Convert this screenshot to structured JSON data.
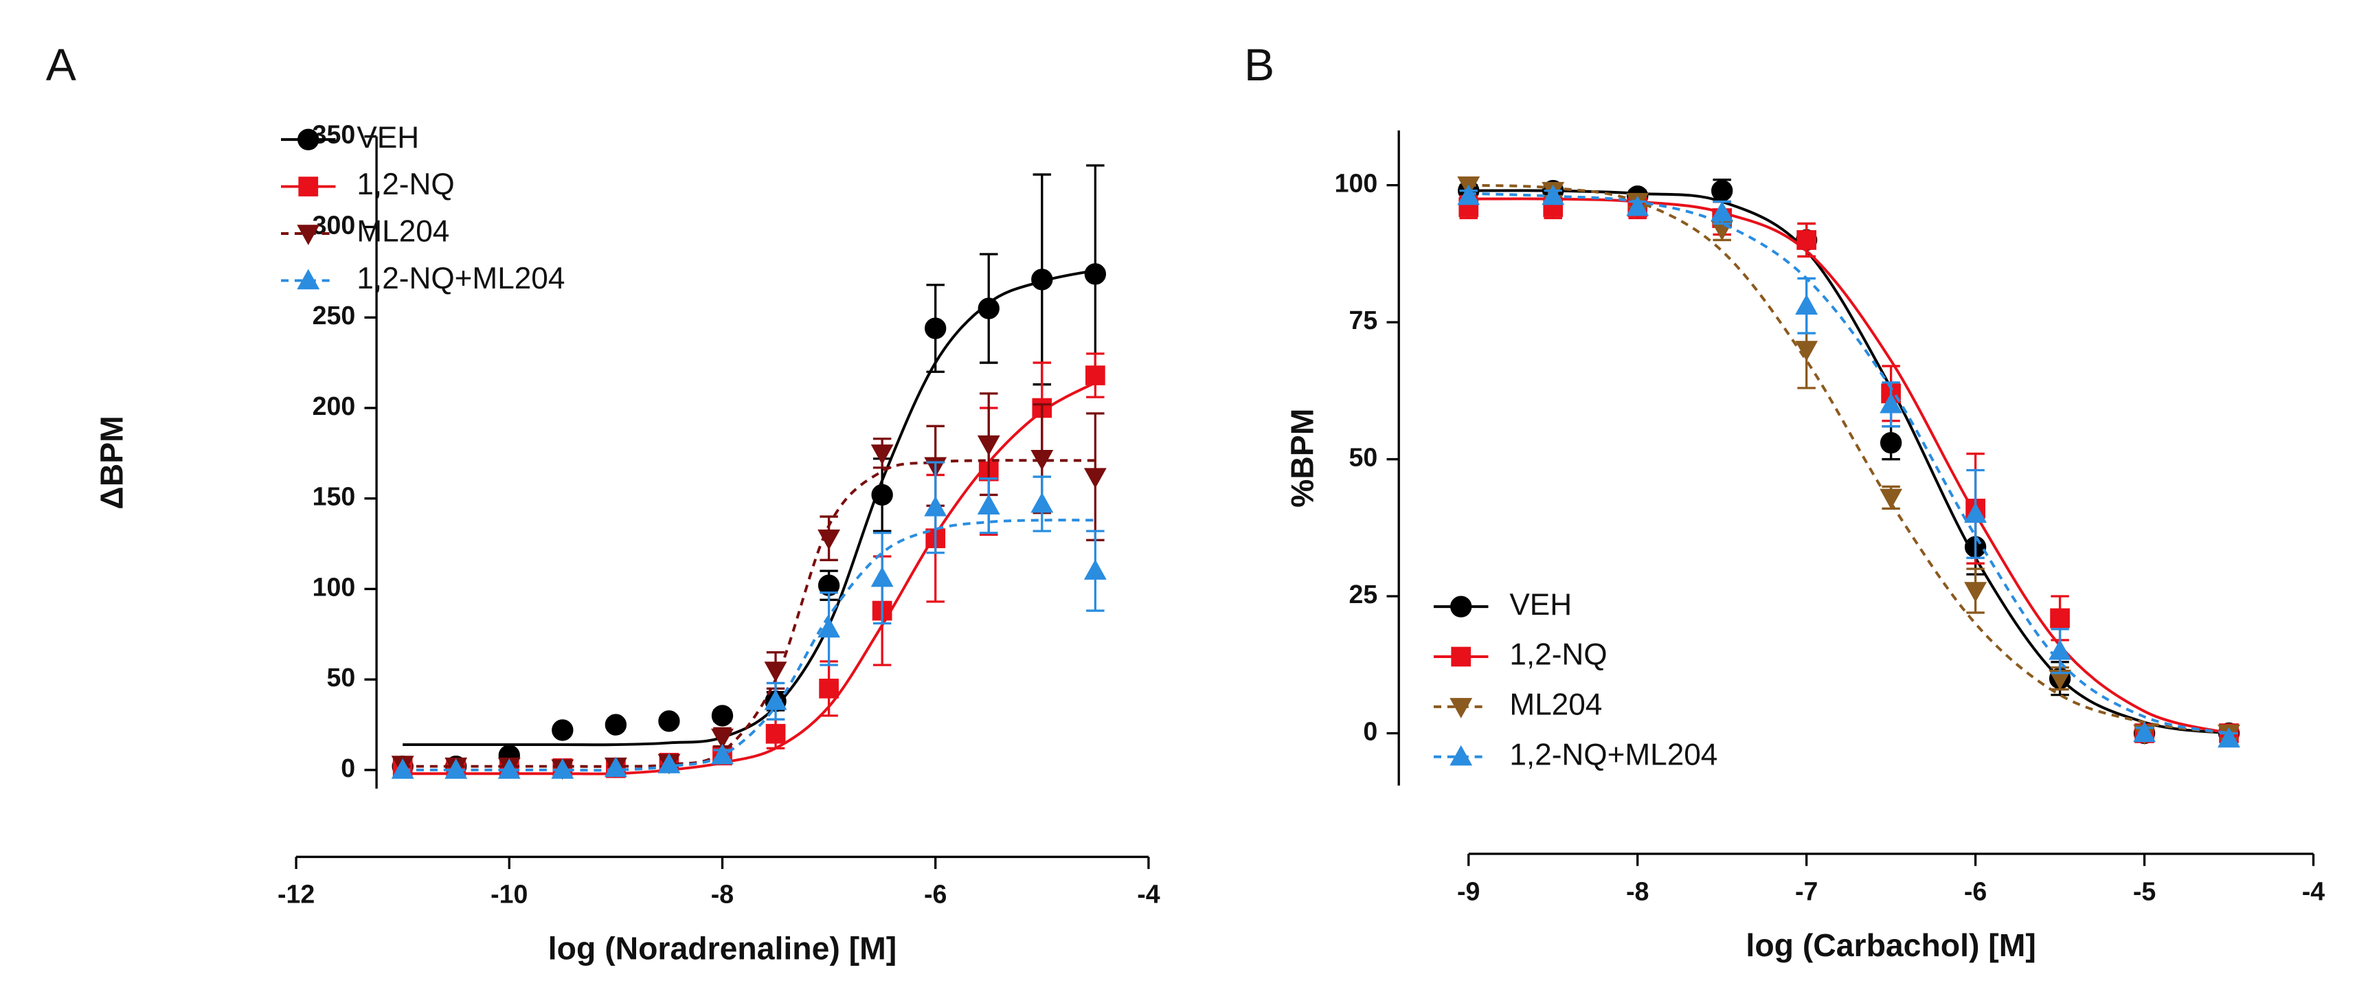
{
  "chart_data": [
    {
      "type": "line",
      "panel_label": "A",
      "x_label": "log (Noradrenaline) [M]",
      "y_label": "ΔBPM",
      "xlim": [
        -12,
        -4
      ],
      "xticks": [
        -12,
        -10,
        -8,
        -6,
        -4
      ],
      "ylim": [
        -48,
        350
      ],
      "yticks": [
        0,
        50,
        100,
        150,
        200,
        250,
        300,
        350
      ],
      "legend": "upper left",
      "x": [
        -11,
        -10.5,
        -10,
        -9.5,
        -9,
        -8.5,
        -8,
        -7.5,
        -7,
        -6.5,
        -6,
        -5.5,
        -5,
        -4.5
      ],
      "series": [
        {
          "name": "VEH",
          "color": "#000000",
          "marker": "circle",
          "dash": false,
          "values": [
            2,
            2,
            8,
            22,
            25,
            27,
            30,
            38,
            102,
            152,
            244,
            255,
            271,
            274
          ],
          "errors": [
            0,
            0,
            2,
            0,
            0,
            0,
            3,
            5,
            8,
            20,
            24,
            30,
            58,
            60
          ],
          "fit": [
            14,
            14,
            14,
            14,
            14,
            15,
            18,
            35,
            80,
            160,
            225,
            258,
            270,
            276
          ]
        },
        {
          "name": "1,2-NQ",
          "color": "#e8101a",
          "marker": "square",
          "dash": false,
          "values": [
            1,
            1,
            1,
            1,
            1,
            4,
            8,
            20,
            45,
            88,
            128,
            165,
            200,
            218
          ],
          "errors": [
            0,
            0,
            0,
            0,
            0,
            2,
            4,
            8,
            15,
            30,
            35,
            35,
            25,
            12
          ],
          "fit": [
            -2,
            -2,
            -2,
            -2,
            -2,
            0,
            4,
            12,
            35,
            80,
            130,
            170,
            198,
            214
          ]
        },
        {
          "name": "ML204",
          "color": "#7a0d0d",
          "marker": "triangle-down",
          "dash": true,
          "values": [
            3,
            2,
            2,
            1,
            2,
            4,
            18,
            55,
            128,
            175,
            168,
            180,
            172,
            162
          ],
          "errors": [
            0,
            0,
            0,
            0,
            0,
            2,
            5,
            10,
            12,
            8,
            22,
            28,
            30,
            35
          ],
          "fit": [
            2,
            2,
            2,
            2,
            2,
            3,
            10,
            50,
            135,
            165,
            170,
            171,
            171,
            171
          ]
        },
        {
          "name": "1,2-NQ+ML204",
          "color": "#2a8de0",
          "marker": "triangle-up",
          "dash": true,
          "values": [
            0,
            0,
            0,
            0,
            1,
            3,
            8,
            38,
            78,
            106,
            145,
            146,
            147,
            110
          ],
          "errors": [
            0,
            0,
            0,
            0,
            0,
            0,
            3,
            10,
            20,
            25,
            25,
            15,
            15,
            22
          ],
          "fit": [
            0,
            0,
            0,
            0,
            0,
            2,
            8,
            35,
            85,
            120,
            133,
            137,
            138,
            138
          ]
        }
      ]
    },
    {
      "type": "line",
      "panel_label": "B",
      "x_label": "log (Carbachol) [M]",
      "y_label": "%BPM",
      "xlim": [
        -9,
        -4
      ],
      "xticks": [
        -9,
        -8,
        -7,
        -6,
        -5,
        -4
      ],
      "ylim": [
        -22,
        110
      ],
      "yticks": [
        0,
        25,
        50,
        75,
        100
      ],
      "legend": "lower left",
      "x": [
        -9,
        -8.5,
        -8,
        -7.5,
        -7,
        -6.5,
        -6,
        -5.5,
        -5,
        -4.5
      ],
      "series": [
        {
          "name": "VEH",
          "color": "#000000",
          "marker": "circle",
          "dash": false,
          "values": [
            99,
            99,
            98,
            99,
            90,
            53,
            34,
            10,
            0,
            0
          ],
          "errors": [
            1,
            1,
            1,
            2,
            3,
            3,
            5,
            3,
            1,
            1
          ],
          "fit": [
            99,
            99,
            98.5,
            97,
            88,
            63,
            32,
            10,
            2,
            0
          ]
        },
        {
          "name": "1,2-NQ",
          "color": "#e8101a",
          "marker": "square",
          "dash": false,
          "values": [
            96,
            96,
            96,
            94,
            90,
            62,
            41,
            21,
            0,
            0
          ],
          "errors": [
            2,
            2,
            2,
            3,
            3,
            5,
            10,
            4,
            1,
            1
          ],
          "fit": [
            97.5,
            97.5,
            97,
            95,
            88,
            68,
            40,
            16,
            4,
            0
          ]
        },
        {
          "name": "ML204",
          "color": "#8b5a1e",
          "marker": "triangle-down",
          "dash": true,
          "values": [
            100,
            99,
            97,
            92,
            70,
            43,
            26,
            10,
            0,
            0
          ],
          "errors": [
            1,
            1,
            1,
            2,
            7,
            2,
            4,
            2,
            1,
            1
          ],
          "fit": [
            100,
            99.5,
            97,
            88,
            68,
            42,
            20,
            7,
            2,
            0
          ]
        },
        {
          "name": "1,2-NQ+ML204",
          "color": "#2a8de0",
          "marker": "triangle-up",
          "dash": true,
          "values": [
            98,
            98,
            96,
            95,
            78,
            60,
            40,
            15,
            0,
            -1
          ],
          "errors": [
            1,
            1,
            1,
            2,
            5,
            4,
            8,
            4,
            1,
            1
          ],
          "fit": [
            98.5,
            98,
            97,
            93,
            83,
            63,
            36,
            13,
            3,
            0
          ]
        }
      ]
    }
  ]
}
